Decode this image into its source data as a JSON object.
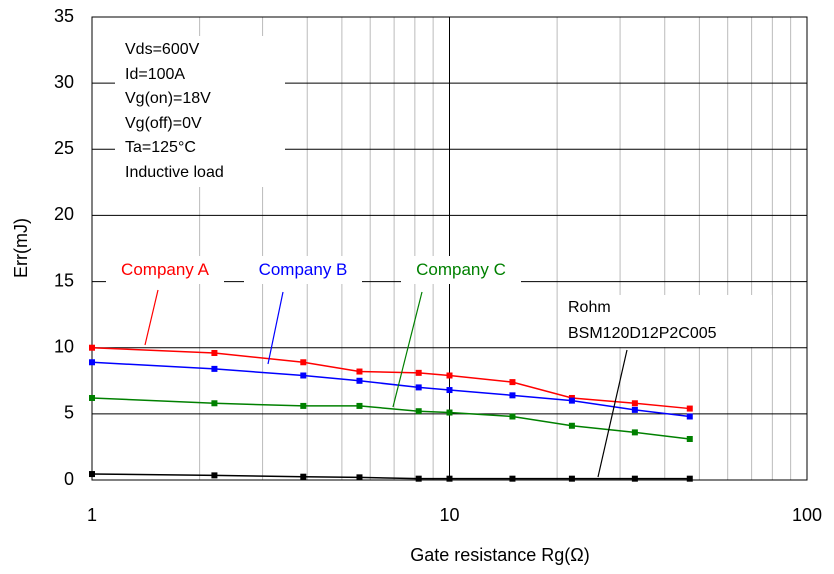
{
  "chart_data": {
    "type": "line",
    "x_label": "Gate resistance Rg(Ω)",
    "y_label": "Err(mJ)",
    "x": [
      1,
      2.2,
      3.9,
      5.6,
      8.2,
      10,
      15,
      22,
      33,
      47
    ],
    "series": [
      {
        "name": "Company A",
        "color": "#ff0000",
        "values": [
          10.0,
          9.6,
          8.9,
          8.2,
          8.1,
          7.9,
          7.4,
          6.2,
          5.8,
          5.4
        ]
      },
      {
        "name": "Company B",
        "color": "#0000ff",
        "values": [
          8.9,
          8.4,
          7.9,
          7.5,
          7.0,
          6.8,
          6.4,
          6.0,
          5.3,
          4.8
        ]
      },
      {
        "name": "Company C",
        "color": "#008000",
        "values": [
          6.2,
          5.8,
          5.6,
          5.6,
          5.2,
          5.1,
          4.8,
          4.1,
          3.6,
          3.1
        ]
      },
      {
        "name": "Rohm BSM120D12P2C005",
        "color": "#000000",
        "values": [
          0.45,
          0.35,
          0.25,
          0.2,
          0.1,
          0.1,
          0.1,
          0.1,
          0.1,
          0.1
        ]
      }
    ],
    "conditions": [
      "Vds=600V",
      "Id=100A",
      "Vg(on)=18V",
      "Vg(off)=0V",
      "Ta=125°C",
      "Inductive load"
    ],
    "xscale": "log",
    "xlim": [
      1,
      100
    ],
    "xticks": [
      1,
      10,
      100
    ],
    "xminor_ticks": [
      2,
      3,
      4,
      5,
      6,
      7,
      8,
      9,
      20,
      30,
      40,
      50,
      60,
      70,
      80,
      90
    ],
    "ylim": [
      0,
      35
    ],
    "yticks": [
      0,
      5,
      10,
      15,
      20,
      25,
      30,
      35
    ],
    "grid": true
  }
}
